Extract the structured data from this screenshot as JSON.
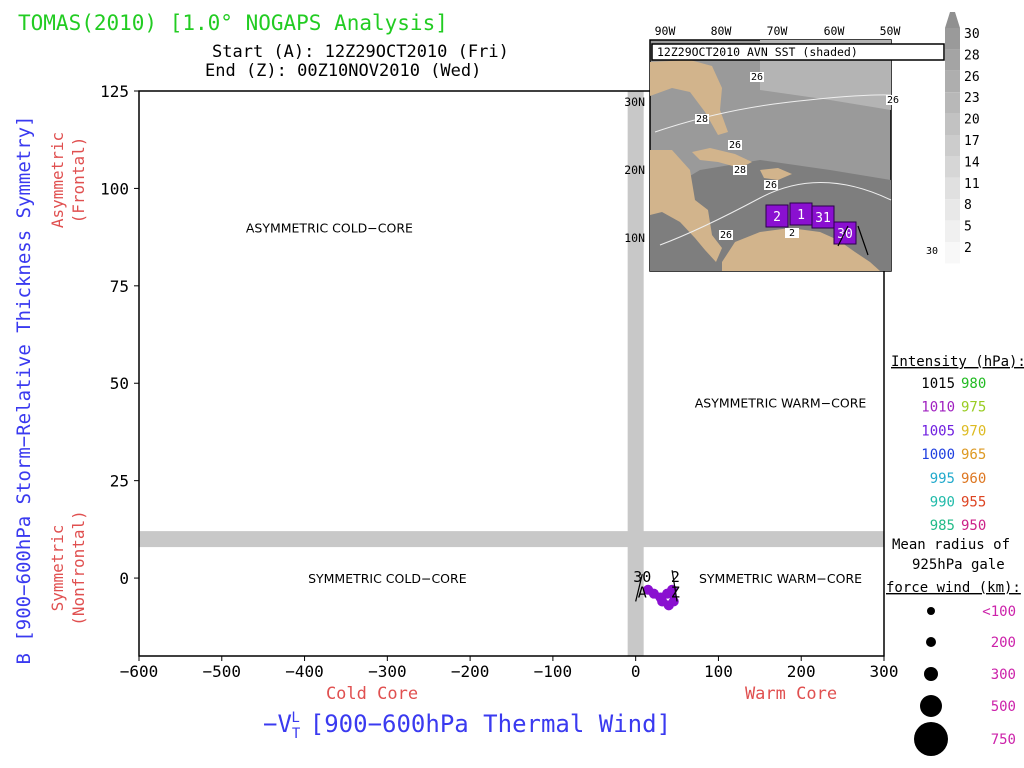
{
  "title": "TOMAS(2010) [1.0° NOGAPS Analysis]",
  "start_line": "Start (A): 12Z29OCT2010 (Fri)",
  "end_line": "End (Z): 00Z10NOV2010 (Wed)",
  "colors": {
    "title": "#22cc22",
    "axis_label": "#3a3af0",
    "quadrant_side": "#e05050",
    "band": "#c8c8c8",
    "track": "#8a10d0"
  },
  "chart_data": {
    "type": "scatter",
    "xlabel": "−V_T^L [900−600hPa Thermal Wind]",
    "xlabel_main": "−V",
    "xlabel_sup": "L",
    "xlabel_sub": "T",
    "xlabel_rest": "[900−600hPa Thermal Wind]",
    "ylabel": "B [900−600hPa Storm−Relative Thickness Symmetry]",
    "xlim": [
      -600,
      300
    ],
    "ylim": [
      -20,
      125
    ],
    "x_ticks": [
      -600,
      -500,
      -400,
      -300,
      -200,
      -100,
      0,
      100,
      200,
      300
    ],
    "x_tick_labels": [
      "−600",
      "−500",
      "−400",
      "−300",
      "−200",
      "−100",
      "0",
      "100",
      "200",
      "300"
    ],
    "y_ticks": [
      0,
      25,
      50,
      75,
      100,
      125
    ],
    "y_tick_labels": [
      "0",
      "25",
      "50",
      "75",
      "100",
      "125"
    ],
    "x_side_labels": {
      "left": "Cold Core",
      "right": "Warm Core"
    },
    "y_side_labels": {
      "upper": "Asymmetric",
      "upper_sub": "(Frontal)",
      "lower": "Symmetric",
      "lower_sub": "(Nonfrontal)"
    },
    "quadrant_labels": [
      {
        "text": "ASYMMETRIC COLD−CORE",
        "x": -370,
        "y": 90
      },
      {
        "text": "ASYMMETRIC WARM−CORE",
        "x": 175,
        "y": 45
      },
      {
        "text": "SYMMETRIC COLD−CORE",
        "x": -300,
        "y": 0
      },
      {
        "text": "SYMMETRIC WARM−CORE",
        "x": 175,
        "y": 0
      }
    ],
    "band_x": 0,
    "band_y": 10,
    "track": {
      "points": [
        {
          "x": 15,
          "y": -3,
          "p": 1005
        },
        {
          "x": 22,
          "y": -4,
          "p": 1005
        },
        {
          "x": 30,
          "y": -5,
          "p": 1000
        },
        {
          "x": 38,
          "y": -4,
          "p": 1000
        },
        {
          "x": 44,
          "y": -3,
          "p": 1005
        },
        {
          "x": 46,
          "y": -6,
          "p": 1005
        },
        {
          "x": 40,
          "y": -7,
          "p": 1005
        },
        {
          "x": 32,
          "y": -6,
          "p": 1005
        }
      ],
      "labels": [
        {
          "text": "30",
          "x": 8,
          "y": 0
        },
        {
          "text": "2",
          "x": 48,
          "y": 0
        },
        {
          "text": "A",
          "x": 8,
          "y": -4
        },
        {
          "text": "Z",
          "x": 48,
          "y": -4
        }
      ]
    }
  },
  "legend": {
    "heading": "Intensity (hPa):",
    "rows": [
      {
        "left": "1015",
        "left_color": "#000000",
        "right": "980",
        "right_color": "#22bb22"
      },
      {
        "left": "1010",
        "left_color": "#a020c0",
        "right": "975",
        "right_color": "#99cc22"
      },
      {
        "left": "1005",
        "left_color": "#7020e0",
        "right": "970",
        "right_color": "#ddbb22"
      },
      {
        "left": "1000",
        "left_color": "#2040e0",
        "right": "965",
        "right_color": "#dd9922"
      },
      {
        "left": "995",
        "left_color": "#22aacc",
        "right": "960",
        "right_color": "#dd7722"
      },
      {
        "left": "990",
        "left_color": "#22bbaa",
        "right": "955",
        "right_color": "#dd4422"
      },
      {
        "left": "985",
        "left_color": "#22bb88",
        "right": "950",
        "right_color": "#cc2288"
      }
    ],
    "radius_heading_1": "Mean radius of",
    "radius_heading_2": "925hPa gale",
    "radius_heading_3": "force wind (km):",
    "radius_color": "#cc22aa",
    "radius_rows": [
      "<100",
      "200",
      "300",
      "500",
      "750"
    ]
  },
  "inset": {
    "title": "12Z29OCT2010 AVN SST (shaded)",
    "lon_labels": [
      "90W",
      "80W",
      "70W",
      "60W",
      "50W"
    ],
    "lat_labels": [
      "30N",
      "20N",
      "10N"
    ],
    "contour_labels": [
      "26",
      "26",
      "28",
      "26",
      "28",
      "26",
      "26",
      "30",
      "2"
    ],
    "track_labels": [
      "2",
      "1",
      "31",
      "30"
    ],
    "colorbar_labels": [
      "30",
      "28",
      "26",
      "23",
      "20",
      "17",
      "14",
      "11",
      "8",
      "5",
      "2"
    ]
  }
}
